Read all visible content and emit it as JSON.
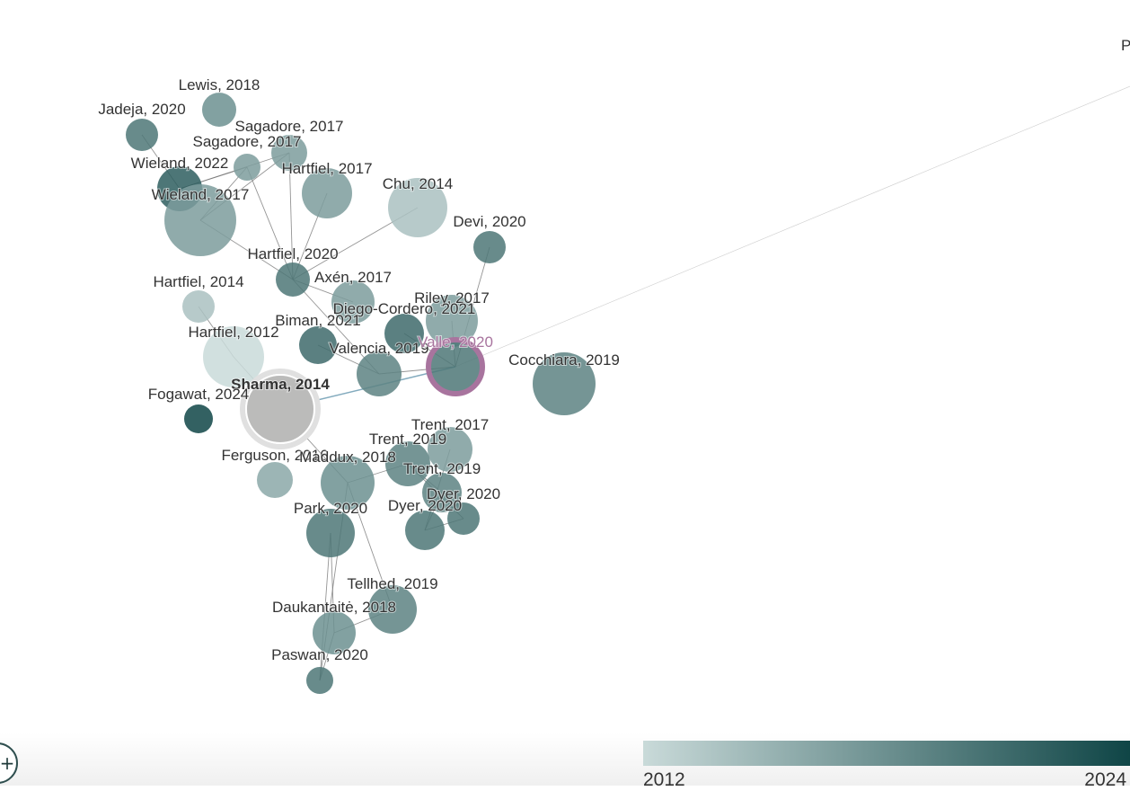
{
  "colors": {
    "year_min": "#c9dad9",
    "year_max": "#0f4546",
    "selected_halo": "#e0e0e0",
    "highlight_ring": "#a8749e",
    "edge": "#707070",
    "link": "#5a8fa8"
  },
  "legend": {
    "min_label": "2012",
    "max_label": "2024"
  },
  "zoom_control": {
    "icon": "plus-icon",
    "glyph": "+"
  },
  "offscreen_label": "P",
  "nodes": [
    {
      "id": "lewis2018",
      "label": "Lewis, 2018",
      "year": 2018
    },
    {
      "id": "jadeja2020",
      "label": "Jadeja, 2020",
      "year": 2020
    },
    {
      "id": "sagadore2017a",
      "label": "Sagadore, 2017",
      "year": 2017
    },
    {
      "id": "sagadore2017b",
      "label": "Sagadore, 2017",
      "year": 2017
    },
    {
      "id": "wieland2022",
      "label": "Wieland, 2022",
      "year": 2022
    },
    {
      "id": "hartfiel2017",
      "label": "Hartfiel, 2017",
      "year": 2017
    },
    {
      "id": "wieland2017",
      "label": "Wieland, 2017",
      "year": 2017
    },
    {
      "id": "chu2014",
      "label": "Chu, 2014",
      "year": 2014
    },
    {
      "id": "devi2020",
      "label": "Devi, 2020",
      "year": 2020
    },
    {
      "id": "hartfiel2020",
      "label": "Hartfiel, 2020",
      "year": 2020
    },
    {
      "id": "axen2017",
      "label": "Axén, 2017",
      "year": 2017
    },
    {
      "id": "hartfiel2014",
      "label": "Hartfiel, 2014",
      "year": 2014
    },
    {
      "id": "riley2017",
      "label": "Riley, 2017",
      "year": 2017
    },
    {
      "id": "diegocordero2021",
      "label": "Diego-Cordero, 2021",
      "year": 2021
    },
    {
      "id": "biman2021",
      "label": "Biman, 2021",
      "year": 2021
    },
    {
      "id": "hartfiel2012",
      "label": "Hartfiel, 2012",
      "year": 2012
    },
    {
      "id": "valencia2019",
      "label": "Valencia, 2019",
      "year": 2019
    },
    {
      "id": "valle2020",
      "label": "Valle, 2020",
      "year": 2020,
      "highlighted": true
    },
    {
      "id": "cocchiara2019",
      "label": "Cocchiara, 2019",
      "year": 2019
    },
    {
      "id": "sharma2014",
      "label": "Sharma, 2014",
      "year": 2014,
      "selected": true
    },
    {
      "id": "fogawat2024",
      "label": "Fogawat, 2024",
      "year": 2024
    },
    {
      "id": "trent2017",
      "label": "Trent, 2017",
      "year": 2017
    },
    {
      "id": "trent2019a",
      "label": "Trent, 2019",
      "year": 2019
    },
    {
      "id": "ferguson2016",
      "label": "Ferguson, 2016",
      "year": 2016
    },
    {
      "id": "maddux2018",
      "label": "Maddux, 2018",
      "year": 2018
    },
    {
      "id": "trent2019b",
      "label": "Trent, 2019",
      "year": 2019
    },
    {
      "id": "dyer2020a",
      "label": "Dyer, 2020",
      "year": 2020
    },
    {
      "id": "dyer2020b",
      "label": "Dyer, 2020",
      "year": 2020
    },
    {
      "id": "park2020",
      "label": "Park, 2020",
      "year": 2020
    },
    {
      "id": "tellhed2019",
      "label": "Tellhed, 2019",
      "year": 2019
    },
    {
      "id": "daukantaite2018",
      "label": "Daukantaitė, 2018",
      "year": 2018
    },
    {
      "id": "paswan2020",
      "label": "Paswan, 2020",
      "year": 2020
    }
  ],
  "edges": [
    [
      "jadeja2020",
      "wieland2022"
    ],
    [
      "wieland2022",
      "sagadore2017a"
    ],
    [
      "wieland2022",
      "sagadore2017b"
    ],
    [
      "wieland2017",
      "sagadore2017b"
    ],
    [
      "wieland2017",
      "sagadore2017a"
    ],
    [
      "wieland2017",
      "hartfiel2020"
    ],
    [
      "sagadore2017b",
      "hartfiel2020"
    ],
    [
      "sagadore2017a",
      "hartfiel2020"
    ],
    [
      "hartfiel2017",
      "hartfiel2020"
    ],
    [
      "hartfiel2020",
      "valencia2019"
    ],
    [
      "hartfiel2020",
      "axen2017"
    ],
    [
      "chu2014",
      "hartfiel2020"
    ],
    [
      "hartfiel2014",
      "hartfiel2012"
    ],
    [
      "biman2021",
      "valencia2019"
    ],
    [
      "valencia2019",
      "valle2020"
    ],
    [
      "diegocordero2021",
      "valle2020"
    ],
    [
      "riley2017",
      "valle2020"
    ],
    [
      "devi2020",
      "valle2020"
    ],
    [
      "sharma2014",
      "valle2020"
    ],
    [
      "sharma2014",
      "hartfiel2012"
    ],
    [
      "sharma2014",
      "maddux2018"
    ],
    [
      "trent2019a",
      "trent2019b"
    ],
    [
      "trent2019a",
      "dyer2020a"
    ],
    [
      "trent2017",
      "dyer2020b"
    ],
    [
      "dyer2020a",
      "dyer2020b"
    ],
    [
      "trent2019b",
      "dyer2020b"
    ],
    [
      "maddux2018",
      "trent2019a"
    ],
    [
      "maddux2018",
      "tellhed2019"
    ],
    [
      "maddux2018",
      "paswan2020"
    ],
    [
      "park2020",
      "daukantaite2018"
    ],
    [
      "park2020",
      "paswan2020"
    ],
    [
      "tellhed2019",
      "daukantaite2018"
    ],
    [
      "daukantaite2018",
      "paswan2020"
    ],
    [
      "valle2020",
      "offscreen"
    ]
  ]
}
